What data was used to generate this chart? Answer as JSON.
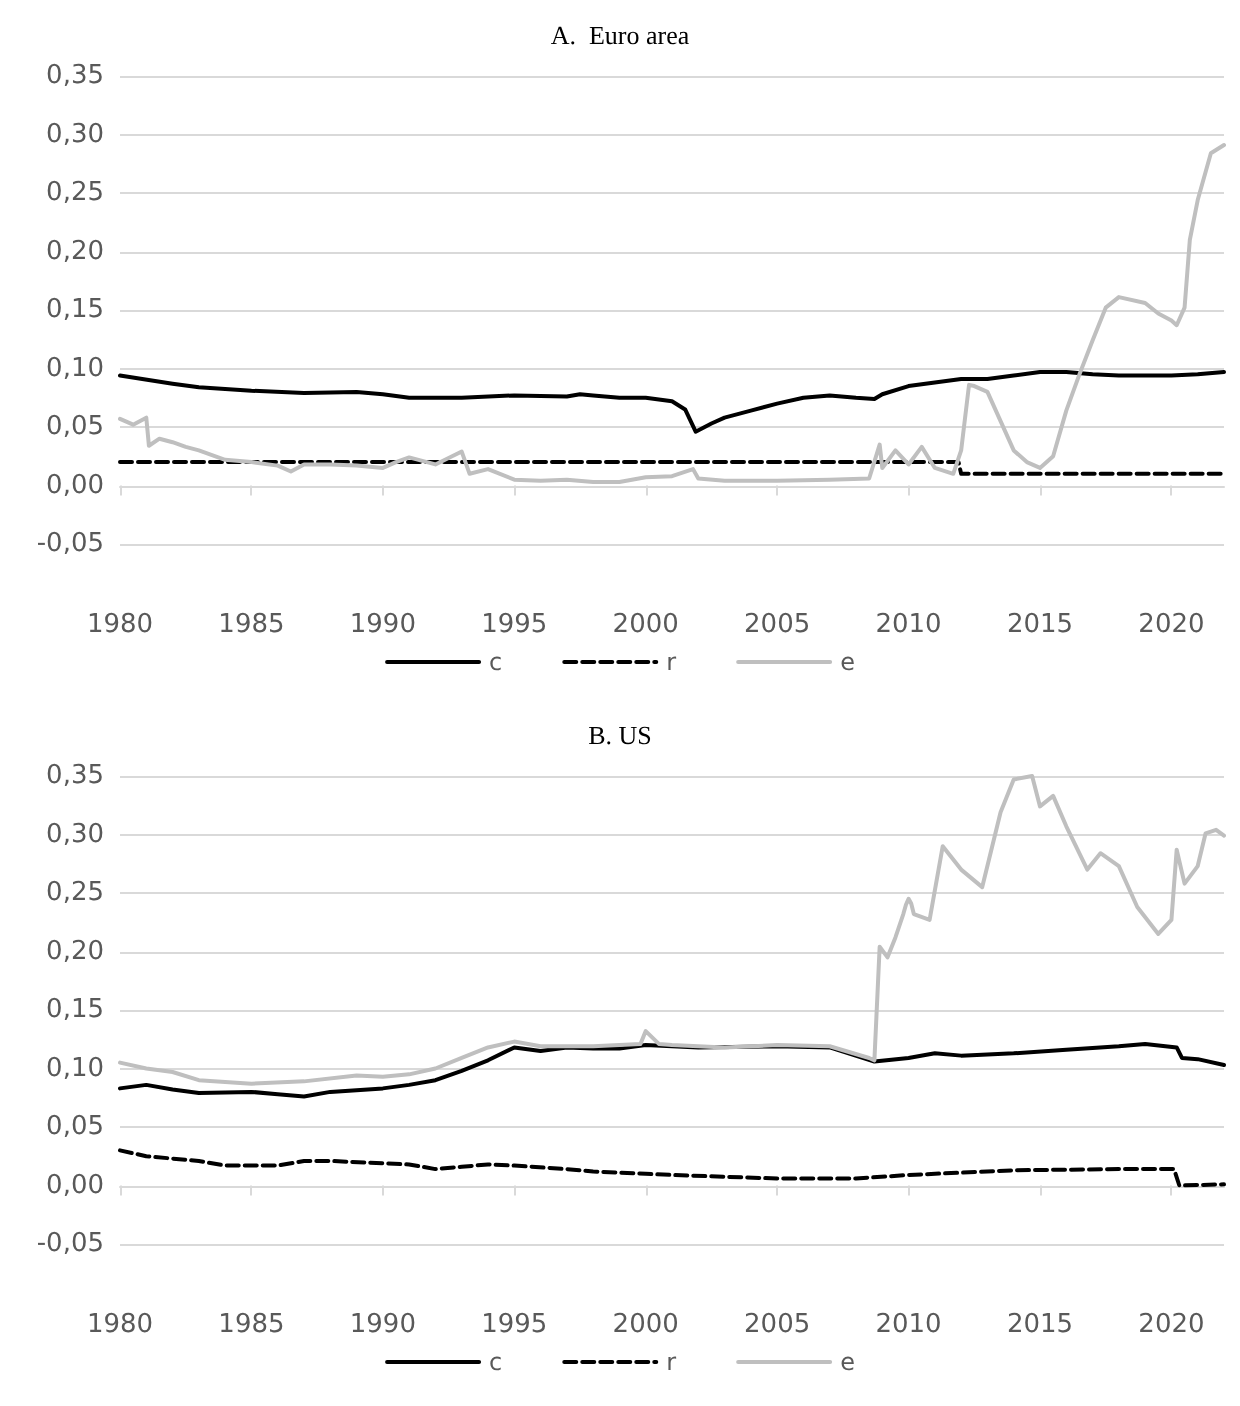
{
  "chart_data": [
    {
      "type": "line",
      "title": "A.  Euro area",
      "xlim": [
        1980,
        2022
      ],
      "xticks": [
        1980,
        1985,
        1990,
        1995,
        2000,
        2005,
        2010,
        2015,
        2020
      ],
      "ylim": [
        -0.05,
        0.35
      ],
      "yticks": [
        {
          "value": -0.05,
          "label": "-0,05"
        },
        {
          "value": 0,
          "label": "0,00"
        },
        {
          "value": 0.05,
          "label": "0,05"
        },
        {
          "value": 0.1,
          "label": "0,10"
        },
        {
          "value": 0.15,
          "label": "0,15"
        },
        {
          "value": 0.2,
          "label": "0,20"
        },
        {
          "value": 0.25,
          "label": "0,25"
        },
        {
          "value": 0.3,
          "label": "0,30"
        },
        {
          "value": 0.35,
          "label": "0,35"
        }
      ],
      "grid": "y",
      "legend": "bottom",
      "marker": "none",
      "series": [
        {
          "name": "c",
          "color": "#000000",
          "line_style": "solid",
          "x": [
            1980,
            1982,
            1983,
            1985,
            1987,
            1989,
            1990,
            1991,
            1993,
            1995,
            1997,
            1997.5,
            1998,
            1999,
            2000,
            2001,
            2001.5,
            2001.9,
            2002.5,
            2003,
            2004,
            2005,
            2006,
            2007,
            2008,
            2008.7,
            2009,
            2010,
            2011,
            2012,
            2013,
            2014,
            2015,
            2016,
            2017,
            2018,
            2020,
            2021,
            2022
          ],
          "values": [
            0.094,
            0.087,
            0.084,
            0.081,
            0.079,
            0.08,
            0.078,
            0.075,
            0.075,
            0.077,
            0.076,
            0.078,
            0.077,
            0.075,
            0.075,
            0.072,
            0.065,
            0.046,
            0.053,
            0.058,
            0.064,
            0.07,
            0.075,
            0.077,
            0.075,
            0.074,
            0.078,
            0.085,
            0.088,
            0.091,
            0.091,
            0.094,
            0.097,
            0.097,
            0.095,
            0.094,
            0.094,
            0.095,
            0.097
          ]
        },
        {
          "name": "r",
          "color": "#000000",
          "line_style": "dashed",
          "x": [
            1980,
            2011.9,
            2012,
            2022
          ],
          "values": [
            0.02,
            0.02,
            0.01,
            0.01
          ]
        },
        {
          "name": "e",
          "color": "#bfbfbf",
          "line_style": "solid",
          "x": [
            1980,
            1980.5,
            1981,
            1981.1,
            1981.5,
            1982,
            1982.5,
            1983,
            1983.5,
            1984,
            1985,
            1986,
            1986.5,
            1987,
            1988,
            1989,
            1990,
            1990.5,
            1991,
            1992,
            1993,
            1993.3,
            1994,
            1995,
            1996,
            1997,
            1998,
            1999,
            2000,
            2001,
            2001.8,
            2002,
            2003,
            2005,
            2007,
            2008.5,
            2008.9,
            2009,
            2009.5,
            2010,
            2010.5,
            2011,
            2011.7,
            2012,
            2012.3,
            2012.5,
            2013,
            2013.5,
            2014,
            2014.5,
            2015,
            2015.5,
            2016,
            2016.5,
            2017,
            2017.5,
            2018,
            2019,
            2019.5,
            2020,
            2020.2,
            2020.5,
            2020.7,
            2021,
            2021.5,
            2022
          ],
          "values": [
            0.057,
            0.052,
            0.058,
            0.034,
            0.04,
            0.037,
            0.033,
            0.03,
            0.026,
            0.022,
            0.02,
            0.017,
            0.012,
            0.018,
            0.018,
            0.017,
            0.015,
            0.02,
            0.024,
            0.018,
            0.029,
            0.01,
            0.014,
            0.005,
            0.004,
            0.005,
            0.003,
            0.003,
            0.007,
            0.008,
            0.014,
            0.006,
            0.004,
            0.004,
            0.005,
            0.006,
            0.035,
            0.015,
            0.03,
            0.018,
            0.033,
            0.015,
            0.01,
            0.03,
            0.086,
            0.085,
            0.08,
            0.055,
            0.03,
            0.02,
            0.015,
            0.025,
            0.064,
            0.095,
            0.124,
            0.152,
            0.161,
            0.156,
            0.147,
            0.141,
            0.137,
            0.152,
            0.21,
            0.244,
            0.284,
            0.291
          ]
        }
      ]
    },
    {
      "type": "line",
      "title": "B. US",
      "xlim": [
        1980,
        2022
      ],
      "xticks": [
        1980,
        1985,
        1990,
        1995,
        2000,
        2005,
        2010,
        2015,
        2020
      ],
      "ylim": [
        -0.05,
        0.35
      ],
      "yticks": [
        {
          "value": -0.05,
          "label": "-0,05"
        },
        {
          "value": 0,
          "label": "0,00"
        },
        {
          "value": 0.05,
          "label": "0,05"
        },
        {
          "value": 0.1,
          "label": "0,10"
        },
        {
          "value": 0.15,
          "label": "0,15"
        },
        {
          "value": 0.2,
          "label": "0,20"
        },
        {
          "value": 0.25,
          "label": "0,25"
        },
        {
          "value": 0.3,
          "label": "0,30"
        },
        {
          "value": 0.35,
          "label": "0,35"
        }
      ],
      "grid": "y",
      "legend": "bottom",
      "marker": "none",
      "series": [
        {
          "name": "c",
          "color": "#000000",
          "line_style": "solid",
          "x": [
            1980,
            1981,
            1982,
            1983,
            1985,
            1986,
            1987,
            1988,
            1990,
            1991,
            1992,
            1993,
            1994,
            1995,
            1996,
            1997,
            1998,
            1999,
            2000,
            2002,
            2005,
            2007,
            2008.7,
            2010,
            2011,
            2012,
            2014,
            2016,
            2018,
            2019,
            2020.2,
            2020.4,
            2021,
            2022
          ],
          "values": [
            0.083,
            0.086,
            0.082,
            0.079,
            0.08,
            0.078,
            0.076,
            0.08,
            0.083,
            0.086,
            0.09,
            0.098,
            0.107,
            0.118,
            0.115,
            0.118,
            0.117,
            0.117,
            0.12,
            0.118,
            0.119,
            0.118,
            0.106,
            0.109,
            0.113,
            0.111,
            0.113,
            0.116,
            0.119,
            0.121,
            0.118,
            0.109,
            0.108,
            0.103
          ]
        },
        {
          "name": "r",
          "color": "#000000",
          "line_style": "dashed",
          "x": [
            1980,
            1981,
            1983,
            1984,
            1986,
            1987,
            1988,
            1990,
            1991,
            1992,
            1993,
            1994,
            1995,
            1997,
            1998,
            2000,
            2001,
            2005,
            2008,
            2010,
            2012,
            2014,
            2018,
            2020.1,
            2020.3,
            2022
          ],
          "values": [
            0.03,
            0.025,
            0.021,
            0.017,
            0.017,
            0.021,
            0.021,
            0.019,
            0.018,
            0.014,
            0.016,
            0.018,
            0.017,
            0.014,
            0.012,
            0.01,
            0.009,
            0.006,
            0.006,
            0.009,
            0.011,
            0.013,
            0.014,
            0.014,
            0.0,
            0.001
          ]
        },
        {
          "name": "e",
          "color": "#bfbfbf",
          "line_style": "solid",
          "x": [
            1980,
            1981,
            1982,
            1983,
            1985,
            1987,
            1989,
            1990,
            1991,
            1992,
            1993,
            1994,
            1995,
            1996,
            1998,
            1999.8,
            2000,
            2000.5,
            2001,
            2003,
            2005,
            2007,
            2008.5,
            2008.7,
            2008.9,
            2009.2,
            2009.5,
            2009.8,
            2009.9,
            2010,
            2010.1,
            2010.2,
            2010.8,
            2011.3,
            2012,
            2012.8,
            2013.5,
            2014,
            2014.7,
            2015,
            2015.5,
            2016,
            2016.8,
            2017.3,
            2018,
            2018.7,
            2019.5,
            2020,
            2020.2,
            2020.5,
            2021,
            2021.3,
            2021.7,
            2022
          ],
          "values": [
            0.105,
            0.1,
            0.097,
            0.09,
            0.087,
            0.089,
            0.094,
            0.093,
            0.095,
            0.1,
            0.109,
            0.118,
            0.123,
            0.119,
            0.119,
            0.121,
            0.132,
            0.121,
            0.12,
            0.118,
            0.12,
            0.119,
            0.109,
            0.107,
            0.204,
            0.195,
            0.212,
            0.232,
            0.24,
            0.245,
            0.241,
            0.232,
            0.227,
            0.29,
            0.27,
            0.255,
            0.319,
            0.347,
            0.35,
            0.324,
            0.333,
            0.307,
            0.27,
            0.284,
            0.273,
            0.238,
            0.215,
            0.227,
            0.287,
            0.258,
            0.273,
            0.301,
            0.304,
            0.299
          ]
        }
      ]
    }
  ]
}
